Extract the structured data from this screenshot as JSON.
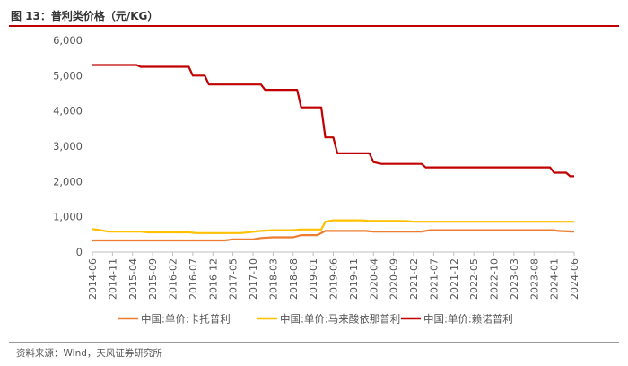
{
  "header": {
    "title": "图 13：普利类价格（元/KG）"
  },
  "footer": {
    "source": "资料来源：Wind，天风证券研究所"
  },
  "chart_data": {
    "type": "line",
    "title": "普利类价格（元/KG）",
    "ylim": [
      0,
      6000
    ],
    "yticks": [
      0,
      1000,
      2000,
      3000,
      4000,
      5000,
      6000
    ],
    "ytick_labels": [
      "0",
      "1,000",
      "2,000",
      "3,000",
      "4,000",
      "5,000",
      "6,000"
    ],
    "xlim": [
      "2014-06",
      "2024-06"
    ],
    "xtick_labels": [
      "2014-06",
      "2014-11",
      "2015-04",
      "2015-09",
      "2016-02",
      "2016-07",
      "2016-12",
      "2017-05",
      "2017-10",
      "2018-03",
      "2018-08",
      "2019-01",
      "2019-06",
      "2019-11",
      "2020-04",
      "2020-09",
      "2021-02",
      "2021-07",
      "2021-12",
      "2022-05",
      "2022-10",
      "2023-03",
      "2023-08",
      "2024-01",
      "2024-06"
    ],
    "series": [
      {
        "name": "中国:单价:卡托普利",
        "color": "#ed7d31",
        "points": [
          [
            "2014-06",
            330
          ],
          [
            "2016-04",
            330
          ],
          [
            "2017-03",
            330
          ],
          [
            "2017-05",
            360
          ],
          [
            "2017-10",
            360
          ],
          [
            "2017-12",
            400
          ],
          [
            "2018-03",
            420
          ],
          [
            "2018-08",
            420
          ],
          [
            "2018-10",
            480
          ],
          [
            "2019-02",
            480
          ],
          [
            "2019-04",
            600
          ],
          [
            "2020-02",
            600
          ],
          [
            "2020-04",
            580
          ],
          [
            "2021-04",
            580
          ],
          [
            "2021-06",
            620
          ],
          [
            "2024-01",
            620
          ],
          [
            "2024-02",
            600
          ],
          [
            "2024-06",
            580
          ]
        ]
      },
      {
        "name": "中国:单价:马来酸依那普利",
        "color": "#ffc000",
        "points": [
          [
            "2014-06",
            650
          ],
          [
            "2014-08",
            620
          ],
          [
            "2014-10",
            580
          ],
          [
            "2015-06",
            580
          ],
          [
            "2015-08",
            560
          ],
          [
            "2016-06",
            560
          ],
          [
            "2016-08",
            540
          ],
          [
            "2017-07",
            540
          ],
          [
            "2017-12",
            600
          ],
          [
            "2018-03",
            620
          ],
          [
            "2018-08",
            620
          ],
          [
            "2018-10",
            640
          ],
          [
            "2019-03",
            640
          ],
          [
            "2019-04",
            860
          ],
          [
            "2019-06",
            900
          ],
          [
            "2020-01",
            900
          ],
          [
            "2020-03",
            880
          ],
          [
            "2020-12",
            880
          ],
          [
            "2021-02",
            860
          ],
          [
            "2024-06",
            860
          ]
        ]
      },
      {
        "name": "中国:单价:赖诺普利",
        "color": "#c00000",
        "points": [
          [
            "2014-06",
            5300
          ],
          [
            "2015-05",
            5300
          ],
          [
            "2015-06",
            5250
          ],
          [
            "2016-06",
            5250
          ],
          [
            "2016-07",
            5000
          ],
          [
            "2016-10",
            5000
          ],
          [
            "2016-11",
            4750
          ],
          [
            "2017-12",
            4750
          ],
          [
            "2018-01",
            4600
          ],
          [
            "2018-09",
            4600
          ],
          [
            "2018-10",
            4100
          ],
          [
            "2019-03",
            4100
          ],
          [
            "2019-04",
            3250
          ],
          [
            "2019-06",
            3250
          ],
          [
            "2019-07",
            2800
          ],
          [
            "2020-03",
            2800
          ],
          [
            "2020-04",
            2550
          ],
          [
            "2020-06",
            2500
          ],
          [
            "2021-04",
            2500
          ],
          [
            "2021-05",
            2400
          ],
          [
            "2023-12",
            2400
          ],
          [
            "2024-01",
            2250
          ],
          [
            "2024-04",
            2250
          ],
          [
            "2024-05",
            2150
          ],
          [
            "2024-06",
            2150
          ]
        ]
      }
    ],
    "legend_position": "bottom"
  }
}
